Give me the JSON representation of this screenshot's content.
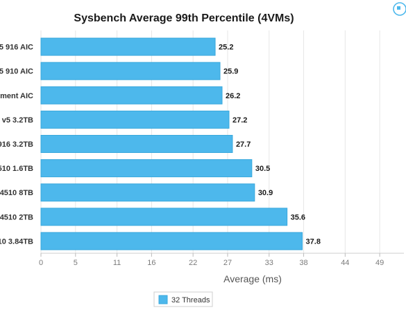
{
  "chart_data": {
    "type": "bar",
    "orientation": "horizontal",
    "title": "Sysbench Average 99th Percentile (4VMs)",
    "xlabel": "Average (ms)",
    "ylabel": "",
    "categories": [
      "5 916 AIC",
      "5 910 AIC",
      "ment AIC",
      "v5 3.2TB",
      "916 3.2TB",
      "510 1.6TB",
      "4510 8TB",
      "4510 2TB",
      "10 3.84TB"
    ],
    "series": [
      {
        "name": "32 Threads",
        "values": [
          25.2,
          25.9,
          26.2,
          27.2,
          27.7,
          30.5,
          30.9,
          35.6,
          37.8
        ]
      }
    ],
    "data_labels": [
      "25.2",
      "25.9",
      "26.2",
      "27.2",
      "27.7",
      "30.5",
      "30.9",
      "35.6",
      "37.8"
    ],
    "xlim": [
      0,
      52.5
    ],
    "x_ticks": [
      0,
      5,
      11,
      16,
      22,
      27,
      33,
      38,
      44,
      49
    ],
    "grid": true,
    "legend_position": "bottom-center",
    "colors": {
      "bar": "#4db8ec",
      "bar_stroke": "#3aa8dc",
      "grid": "#e6e6e6"
    }
  },
  "toolbar": {
    "menu_icon": "burger-menu-icon"
  }
}
